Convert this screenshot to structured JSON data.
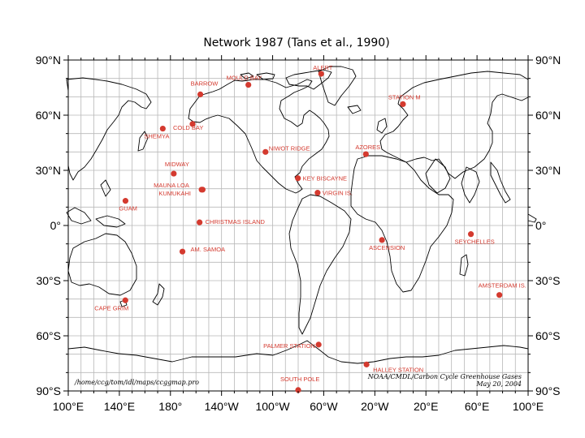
{
  "title": "Network 1987 (Tans et al., 1990)",
  "colors": {
    "station": "#d43a2f",
    "grid": "#b8b8b8",
    "coast": "#000000"
  },
  "lat_ticks": [
    "90°N",
    "60°N",
    "30°N",
    "0°",
    "30°S",
    "60°S",
    "90°S"
  ],
  "lon_ticks": [
    "100°E",
    "140°E",
    "180°",
    "140°W",
    "100°W",
    "60°W",
    "20°W",
    "20°E",
    "60°E",
    "100°E"
  ],
  "stations": [
    {
      "label": "ALERT",
      "lon": -62,
      "lat": 82.5
    },
    {
      "label": "MOULD BAY",
      "lon": -119,
      "lat": 76.5
    },
    {
      "label": "BARROW",
      "lon": -156.6,
      "lat": 71.3
    },
    {
      "label": "STATION M",
      "lon": 2,
      "lat": 66
    },
    {
      "label": "COLD BAY",
      "lon": -162.7,
      "lat": 55.2
    },
    {
      "label": "SHEMYA",
      "lon": 174,
      "lat": 52.7
    },
    {
      "label": "NIWOT RIDGE",
      "lon": -105.6,
      "lat": 40
    },
    {
      "label": "AZORES",
      "lon": -27,
      "lat": 38.8
    },
    {
      "label": "MIDWAY",
      "lon": -177.4,
      "lat": 28.2
    },
    {
      "label": "KEY BISCAYNE",
      "lon": -80.2,
      "lat": 25.7
    },
    {
      "label": "MAUNA LOA",
      "lon": -155.6,
      "lat": 19.5
    },
    {
      "label": "KUMUKAHI",
      "lon": -154.8,
      "lat": 19.5
    },
    {
      "label": "VIRGIN IS.",
      "lon": -64.8,
      "lat": 17.8
    },
    {
      "label": "GUAM",
      "lon": 144.8,
      "lat": 13.4
    },
    {
      "label": "CHRISTMAS ISLAND",
      "lon": -157.2,
      "lat": 1.7
    },
    {
      "label": "SEYCHELLES",
      "lon": 55.2,
      "lat": -4.7
    },
    {
      "label": "ASCENSION",
      "lon": -14.4,
      "lat": -7.9
    },
    {
      "label": "AM. SAMOA",
      "lon": -170.6,
      "lat": -14.2
    },
    {
      "label": "AMSTERDAM IS.",
      "lon": 77.5,
      "lat": -37.8
    },
    {
      "label": "CAPE GRIM",
      "lon": 144.7,
      "lat": -40.7
    },
    {
      "label": "PALMER STATION",
      "lon": -64,
      "lat": -64.8
    },
    {
      "label": "HALLEY STATION",
      "lon": -26.5,
      "lat": -75.6
    },
    {
      "label": "SOUTH POLE",
      "lon": -80,
      "lat": -89.5
    }
  ],
  "footer": {
    "path": "/home/ccg/tom/idl/maps/ccggmap.pro",
    "credit": "NOAA/CMDL/Carbon Cycle Greenhouse Gases",
    "date": "May 20, 2004"
  }
}
